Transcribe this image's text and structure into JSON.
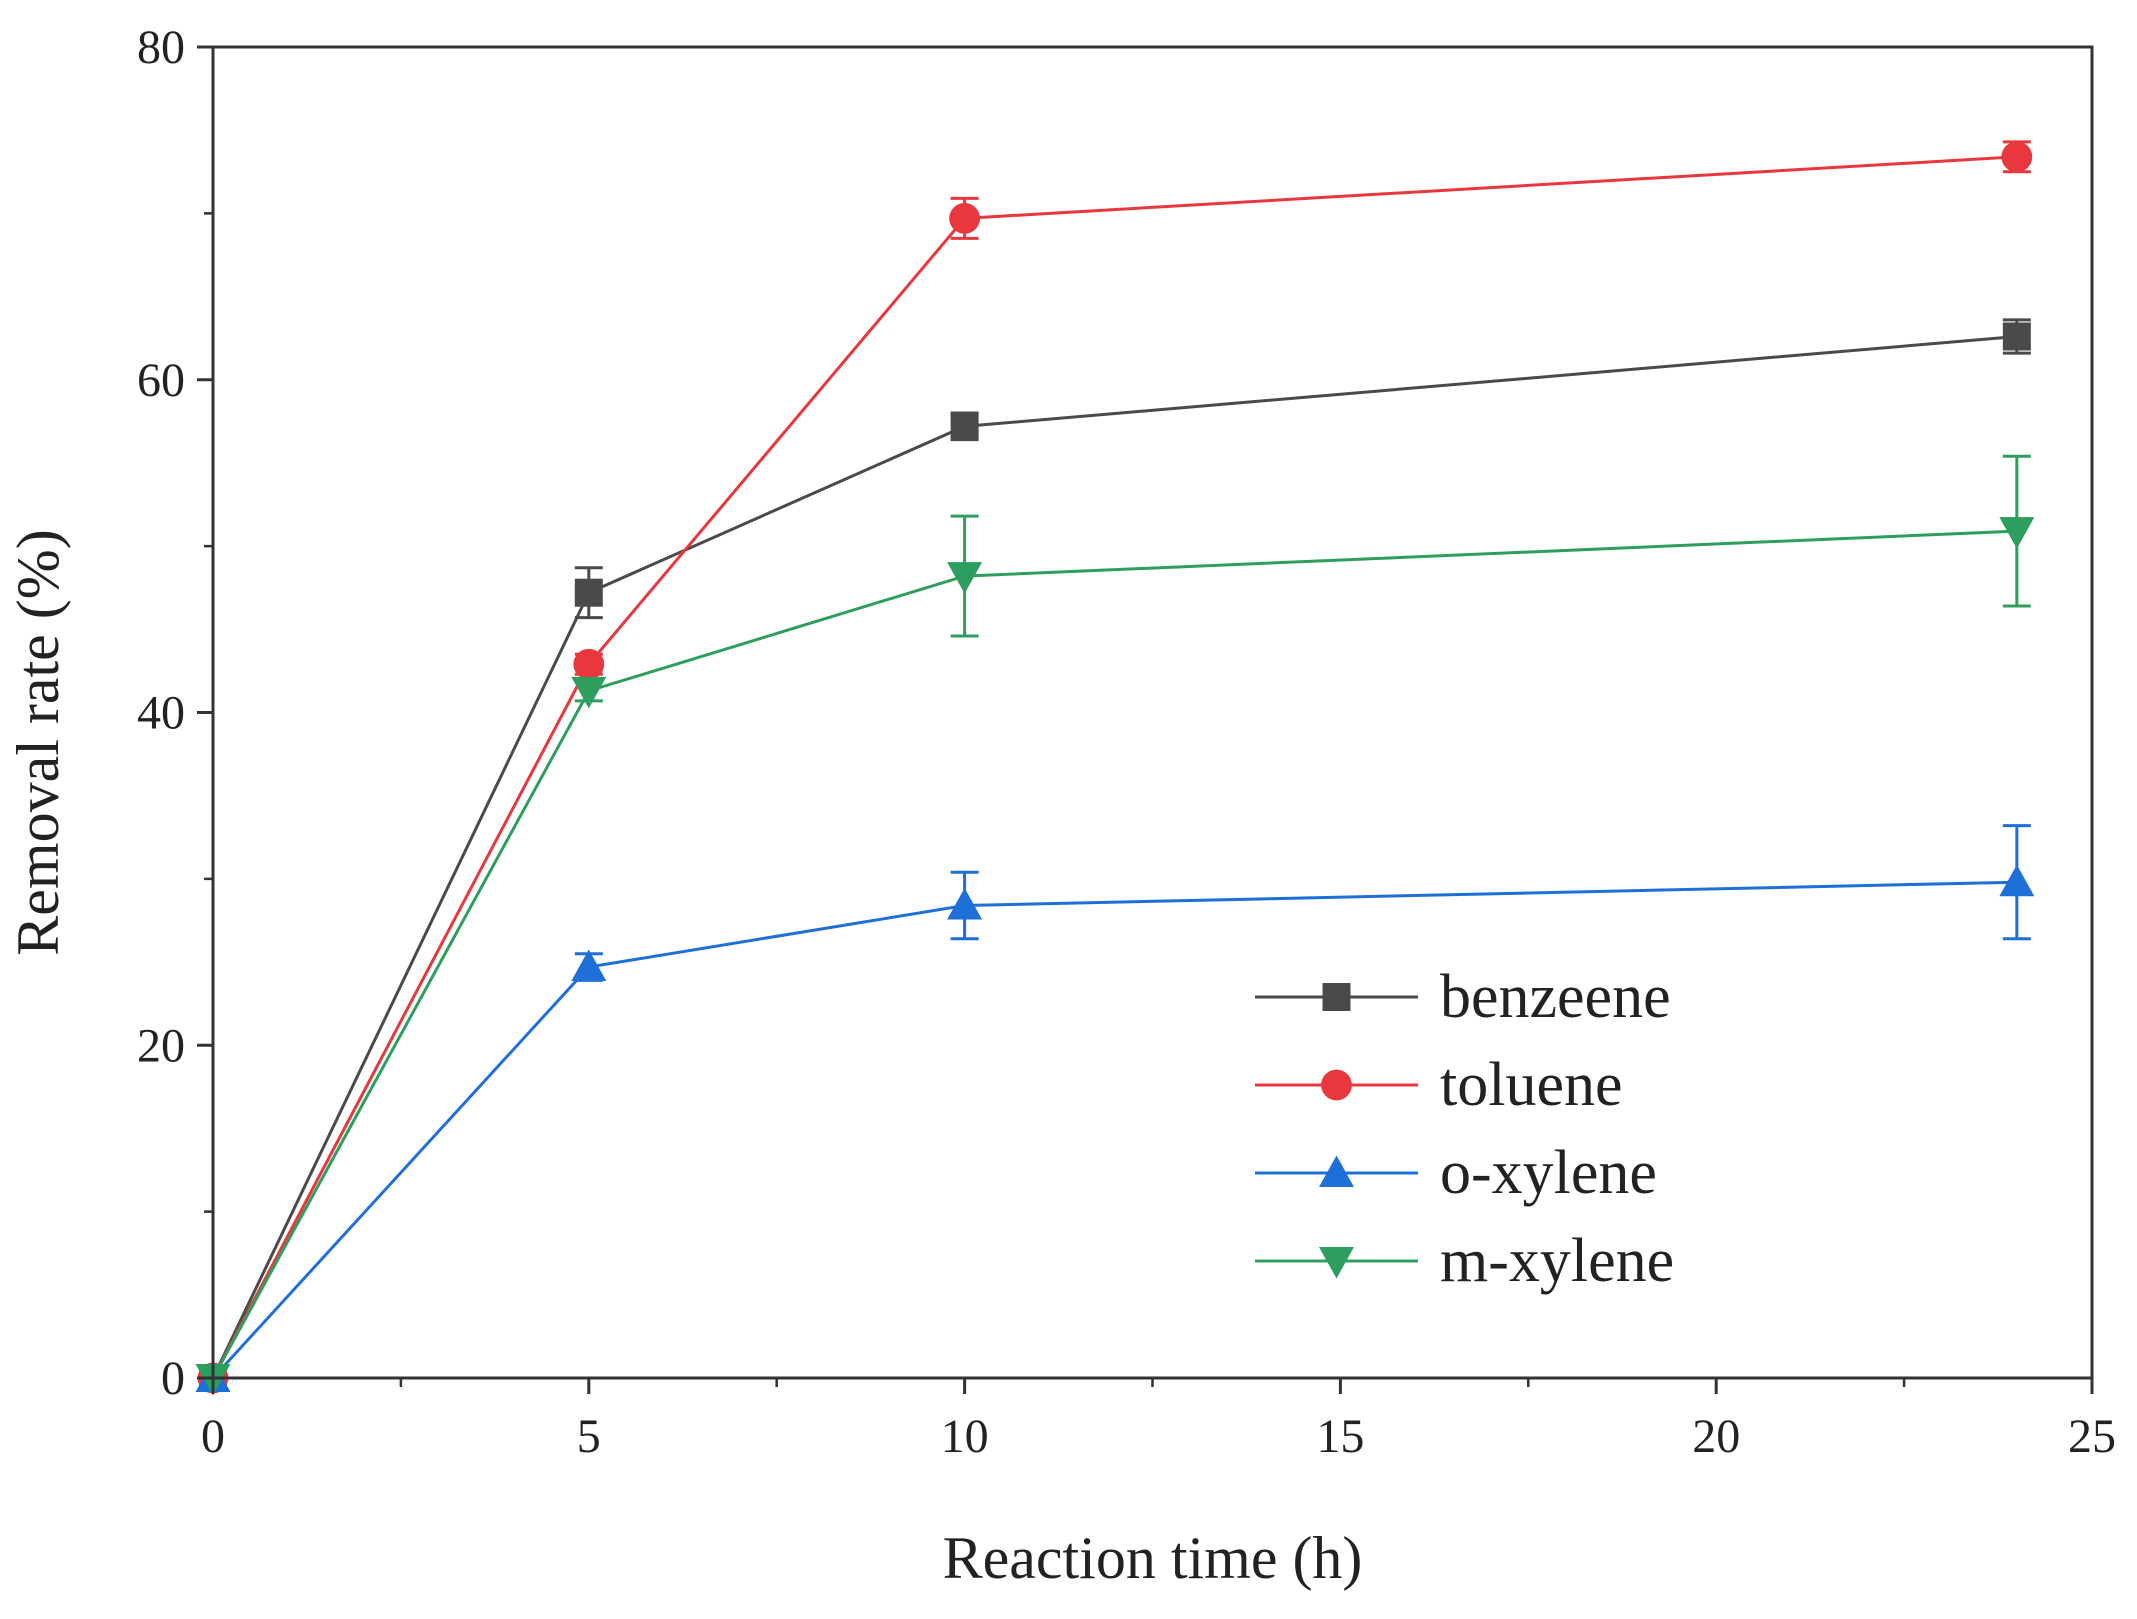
{
  "chart_data": {
    "type": "line",
    "title": "",
    "xlabel": "Reaction time (h)",
    "ylabel": "Removal rate (%)",
    "xlim": [
      0,
      25
    ],
    "ylim": [
      0,
      80
    ],
    "xticks": [
      0,
      5,
      10,
      15,
      20,
      25
    ],
    "yticks": [
      0,
      20,
      40,
      60,
      80
    ],
    "x_minor_step": 2.5,
    "y_minor_step": 10,
    "grid": false,
    "legend_position": "bottom-right",
    "x": [
      0,
      5,
      10,
      24
    ],
    "series": [
      {
        "name": "benzeene",
        "color": "#4a4a4a",
        "marker": "square",
        "values": [
          0,
          47.2,
          57.2,
          62.6
        ],
        "errors": [
          0,
          1.5,
          0.8,
          1.0
        ]
      },
      {
        "name": "toluene",
        "color": "#e8383d",
        "marker": "circle",
        "values": [
          0,
          42.9,
          69.7,
          73.4
        ],
        "errors": [
          0,
          0.6,
          1.2,
          0.9
        ]
      },
      {
        "name": "o-xylene",
        "color": "#1f6fd9",
        "marker": "triangle-up",
        "values": [
          0,
          24.7,
          28.4,
          29.8
        ],
        "errors": [
          0,
          0.8,
          2.0,
          3.4
        ]
      },
      {
        "name": "m-xylene",
        "color": "#2e9e5e",
        "marker": "triangle-down",
        "values": [
          0,
          41.3,
          48.2,
          50.9
        ],
        "errors": [
          0,
          0.6,
          3.6,
          4.5
        ]
      }
    ]
  }
}
